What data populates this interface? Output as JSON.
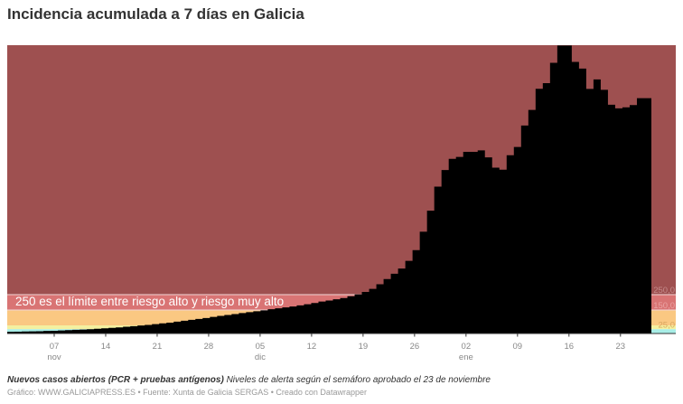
{
  "title": "Incidencia acumulada a 7 días en Galicia",
  "notes": {
    "bold": "Nuevos casos abiertos (PCR + pruebas antígenos)",
    "italic": " Niveles de alerta según el semáforo aprobado el 23 de noviembre"
  },
  "credit": "Gráfico: WWW.GALICIAPRESS.ES • Fuente: Xunta de Galicia SERGAS • Creado con Datawrapper",
  "annotation": "250 es el límite entre riesgo alto y riesgo muy alto",
  "colors": {
    "very_high": "#9e5050",
    "high": "#d97474",
    "medium": "#fac882",
    "low": "#f4f0a0",
    "new_normal": "#a8ede6",
    "bars": "#000000",
    "axis_text": "#888888"
  },
  "chart_data": {
    "type": "bar",
    "title": "Incidencia acumulada a 7 días en Galicia",
    "xlabel": "",
    "ylabel": "",
    "ylim": [
      0,
      1875
    ],
    "grid": false,
    "x_ticks": [
      {
        "label": "07",
        "sub": "nov"
      },
      {
        "label": "14",
        "sub": ""
      },
      {
        "label": "21",
        "sub": ""
      },
      {
        "label": "28",
        "sub": ""
      },
      {
        "label": "05",
        "sub": "dic"
      },
      {
        "label": "12",
        "sub": ""
      },
      {
        "label": "19",
        "sub": ""
      },
      {
        "label": "26",
        "sub": ""
      },
      {
        "label": "02",
        "sub": "ene"
      },
      {
        "label": "09",
        "sub": ""
      },
      {
        "label": "16",
        "sub": ""
      },
      {
        "label": "23",
        "sub": ""
      }
    ],
    "threshold_bands": [
      {
        "from": 250,
        "to": 1875,
        "label": "250,0",
        "color": "#9e5050"
      },
      {
        "from": 150,
        "to": 250,
        "label": "150,0",
        "color": "#d97474"
      },
      {
        "from": 50,
        "to": 150,
        "label": "",
        "color": "#fac882"
      },
      {
        "from": 25,
        "to": 50,
        "label": "25,0",
        "color": "#f4f0a0"
      },
      {
        "from": 0,
        "to": 25,
        "label": "",
        "color": "#a8ede6"
      }
    ],
    "start_date": "2020-10-31",
    "end_date": "2021-01-26",
    "values": [
      8,
      9,
      10,
      11,
      12,
      14,
      15,
      17,
      19,
      21,
      23,
      25,
      28,
      31,
      34,
      37,
      41,
      45,
      49,
      53,
      58,
      63,
      68,
      74,
      80,
      86,
      92,
      98,
      105,
      112,
      118,
      124,
      130,
      136,
      142,
      148,
      155,
      161,
      167,
      173,
      180,
      188,
      196,
      205,
      212,
      220,
      228,
      240,
      252,
      268,
      288,
      318,
      352,
      386,
      420,
      470,
      540,
      660,
      797,
      954,
      1062,
      1135,
      1147,
      1180,
      1180,
      1190,
      1144,
      1077,
      1064,
      1158,
      1212,
      1352,
      1453,
      1591,
      1628,
      1760,
      1873,
      1873,
      1766,
      1723,
      1590,
      1652,
      1584,
      1487,
      1464,
      1470,
      1485,
      1530,
      1530
    ],
    "labels": [
      "250,0",
      "150,0",
      "25,0"
    ]
  }
}
